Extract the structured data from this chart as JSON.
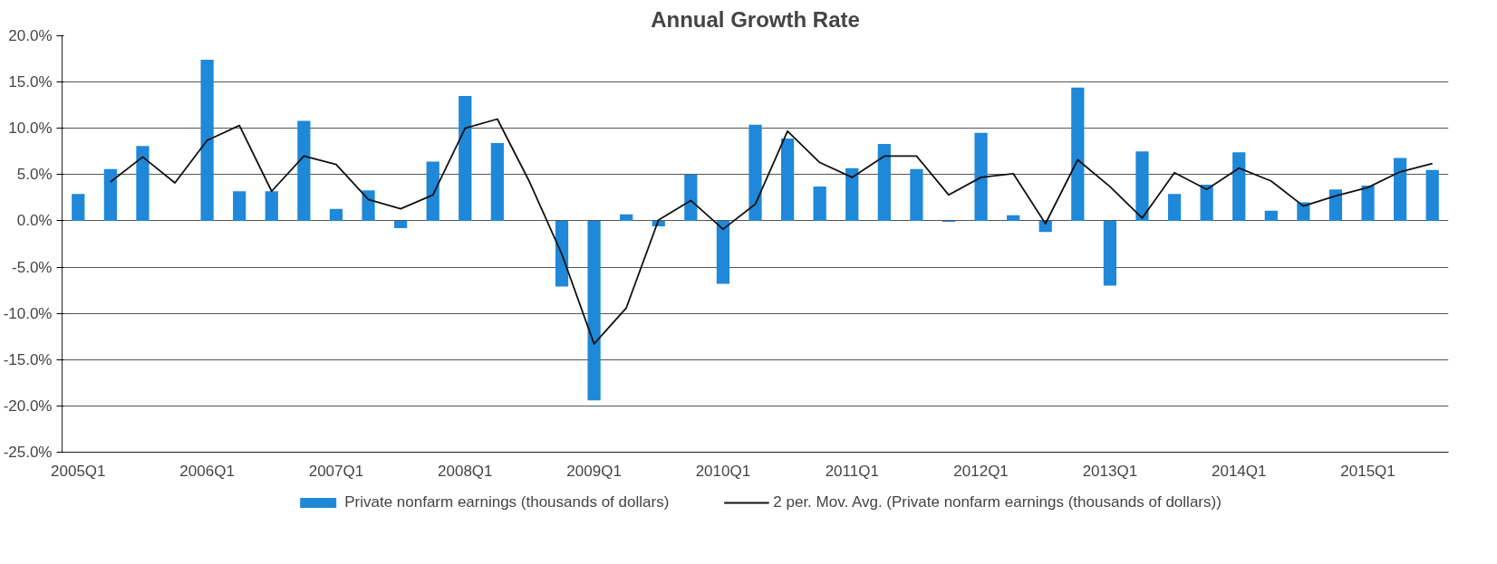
{
  "chart_data": {
    "type": "bar",
    "title": "Annual Growth Rate",
    "categories": [
      "2005Q1",
      null,
      null,
      null,
      "2006Q1",
      null,
      null,
      null,
      "2007Q1",
      null,
      null,
      null,
      "2008Q1",
      null,
      null,
      null,
      "2009Q1",
      null,
      null,
      null,
      "2010Q1",
      null,
      null,
      null,
      "2011Q1",
      null,
      null,
      null,
      "2012Q1",
      null,
      null,
      null,
      "2013Q1",
      null,
      null,
      null,
      "2014Q1",
      null,
      null,
      null,
      "2015Q1",
      null,
      null
    ],
    "series": [
      {
        "name": "Private nonfarm earnings (thousands of dollars)",
        "color": "#1f88d8",
        "values": [
          2.9,
          5.6,
          8.1,
          0,
          17.4,
          3.2,
          3.2,
          10.8,
          1.3,
          3.3,
          -0.8,
          6.4,
          13.5,
          8.4,
          0,
          -7.1,
          -19.4,
          0.7,
          -0.6,
          5.0,
          -6.8,
          10.4,
          8.9,
          3.7,
          5.7,
          8.3,
          5.6,
          -0.1,
          9.5,
          0.6,
          -1.2,
          14.4,
          -7.0,
          7.5,
          2.9,
          3.9,
          7.4,
          1.1,
          2.0,
          3.4,
          3.8,
          6.8,
          5.5
        ]
      },
      {
        "name": "2 per. Mov. Avg. (Private nonfarm earnings (thousands of dollars))",
        "type": "line",
        "color": "#111111",
        "values": [
          null,
          4.2,
          6.9,
          4.1,
          8.7,
          10.3,
          3.2,
          7.0,
          6.1,
          2.3,
          1.3,
          2.8,
          10.0,
          11.0,
          4.2,
          -3.6,
          -13.3,
          -9.4,
          0.1,
          2.2,
          -0.9,
          1.8,
          9.7,
          6.3,
          4.7,
          7.0,
          7.0,
          2.8,
          4.7,
          5.1,
          -0.3,
          6.6,
          3.7,
          0.3,
          5.2,
          3.4,
          5.7,
          4.3,
          1.6,
          2.7,
          3.6,
          5.3,
          6.2
        ]
      }
    ],
    "ylim": [
      -25,
      20
    ],
    "yticks": [
      {
        "value": -25,
        "label": "-25.0%"
      },
      {
        "value": -20,
        "label": "-20.0%"
      },
      {
        "value": -15,
        "label": "-15.0%"
      },
      {
        "value": -10,
        "label": "-10.0%"
      },
      {
        "value": -5,
        "label": "-5.0%"
      },
      {
        "value": 0,
        "label": "0.0%"
      },
      {
        "value": 5,
        "label": "5.0%"
      },
      {
        "value": 10,
        "label": "10.0%"
      },
      {
        "value": 15,
        "label": "15.0%"
      },
      {
        "value": 20,
        "label": "20.0%"
      }
    ],
    "grid": "y",
    "legend": "bottom",
    "marker": "none",
    "line_style": "solid"
  }
}
